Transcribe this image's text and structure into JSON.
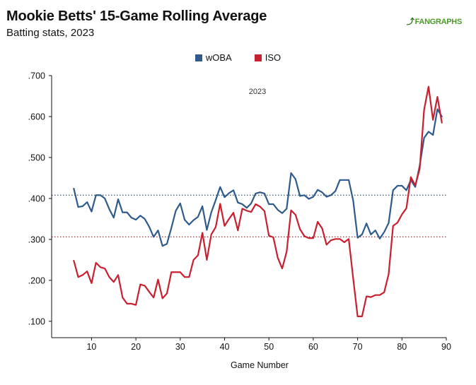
{
  "header": {
    "title": "Mookie Betts' 15-Game Rolling Average",
    "subtitle": "Batting stats, 2023",
    "logo_mark": "⤴",
    "logo_text": "FANGRAPHS"
  },
  "chart_data": {
    "type": "line",
    "title": "Mookie Betts' 15-Game Rolling Average",
    "subtitle": "Batting stats, 2023",
    "panel_label": "2023",
    "xlabel": "Game Number",
    "ylabel": "",
    "xlim": [
      1,
      90
    ],
    "ylim": [
      0.06,
      0.7
    ],
    "xticks": [
      10,
      20,
      30,
      40,
      50,
      60,
      70,
      80,
      90
    ],
    "xtick_labels": [
      "10",
      "20",
      "30",
      "40",
      "50",
      "60",
      "70",
      "80",
      "90"
    ],
    "yticks": [
      0.1,
      0.2,
      0.3,
      0.4,
      0.5,
      0.6,
      0.7
    ],
    "ytick_labels": [
      ".100",
      ".200",
      ".300",
      ".400",
      ".500",
      ".600",
      ".700"
    ],
    "legend_position": "top-center",
    "grid": false,
    "x": [
      6,
      7,
      8,
      9,
      10,
      11,
      12,
      13,
      14,
      15,
      16,
      17,
      18,
      19,
      20,
      21,
      22,
      23,
      24,
      25,
      26,
      27,
      28,
      29,
      30,
      31,
      32,
      33,
      34,
      35,
      36,
      37,
      38,
      39,
      40,
      41,
      42,
      43,
      44,
      45,
      46,
      47,
      48,
      49,
      50,
      51,
      52,
      53,
      54,
      55,
      56,
      57,
      58,
      59,
      60,
      61,
      62,
      63,
      64,
      65,
      66,
      67,
      68,
      69,
      70,
      71,
      72,
      73,
      74,
      75,
      76,
      77,
      78,
      79,
      80,
      81,
      82,
      83,
      84,
      85,
      86,
      87,
      88,
      89
    ],
    "series": [
      {
        "name": "wOBA",
        "color": "#2e5b8c",
        "values": [
          0.424,
          0.379,
          0.381,
          0.391,
          0.368,
          0.408,
          0.408,
          0.4,
          0.374,
          0.353,
          0.398,
          0.366,
          0.366,
          0.353,
          0.348,
          0.358,
          0.35,
          0.331,
          0.306,
          0.322,
          0.284,
          0.289,
          0.328,
          0.37,
          0.388,
          0.348,
          0.336,
          0.347,
          0.355,
          0.381,
          0.323,
          0.366,
          0.396,
          0.428,
          0.403,
          0.413,
          0.42,
          0.39,
          0.386,
          0.377,
          0.388,
          0.412,
          0.415,
          0.412,
          0.386,
          0.386,
          0.372,
          0.364,
          0.375,
          0.462,
          0.447,
          0.406,
          0.408,
          0.399,
          0.404,
          0.421,
          0.415,
          0.404,
          0.408,
          0.418,
          0.445,
          0.445,
          0.445,
          0.395,
          0.304,
          0.312,
          0.339,
          0.312,
          0.322,
          0.302,
          0.318,
          0.34,
          0.42,
          0.431,
          0.431,
          0.42,
          0.445,
          0.428,
          0.48,
          0.548,
          0.563,
          0.555,
          0.618,
          0.6
        ]
      },
      {
        "name": "ISO",
        "color": "#c8202f",
        "values": [
          0.248,
          0.208,
          0.213,
          0.222,
          0.193,
          0.243,
          0.232,
          0.229,
          0.208,
          0.196,
          0.213,
          0.158,
          0.143,
          0.143,
          0.14,
          0.19,
          0.187,
          0.172,
          0.158,
          0.202,
          0.156,
          0.168,
          0.22,
          0.22,
          0.22,
          0.208,
          0.208,
          0.25,
          0.261,
          0.316,
          0.25,
          0.312,
          0.33,
          0.387,
          0.333,
          0.35,
          0.365,
          0.322,
          0.375,
          0.37,
          0.367,
          0.386,
          0.38,
          0.369,
          0.309,
          0.305,
          0.255,
          0.229,
          0.27,
          0.371,
          0.36,
          0.325,
          0.308,
          0.303,
          0.303,
          0.343,
          0.327,
          0.287,
          0.298,
          0.301,
          0.301,
          0.293,
          0.301,
          0.205,
          0.112,
          0.112,
          0.161,
          0.159,
          0.164,
          0.164,
          0.171,
          0.215,
          0.333,
          0.341,
          0.361,
          0.376,
          0.452,
          0.432,
          0.472,
          0.617,
          0.673,
          0.592,
          0.648,
          0.585
        ]
      }
    ],
    "reference_lines": [
      {
        "series": "wOBA",
        "y": 0.408,
        "style": "dotted",
        "color": "#2e5b8c"
      },
      {
        "series": "ISO",
        "y": 0.306,
        "style": "dotted",
        "color": "#c8202f"
      }
    ]
  }
}
